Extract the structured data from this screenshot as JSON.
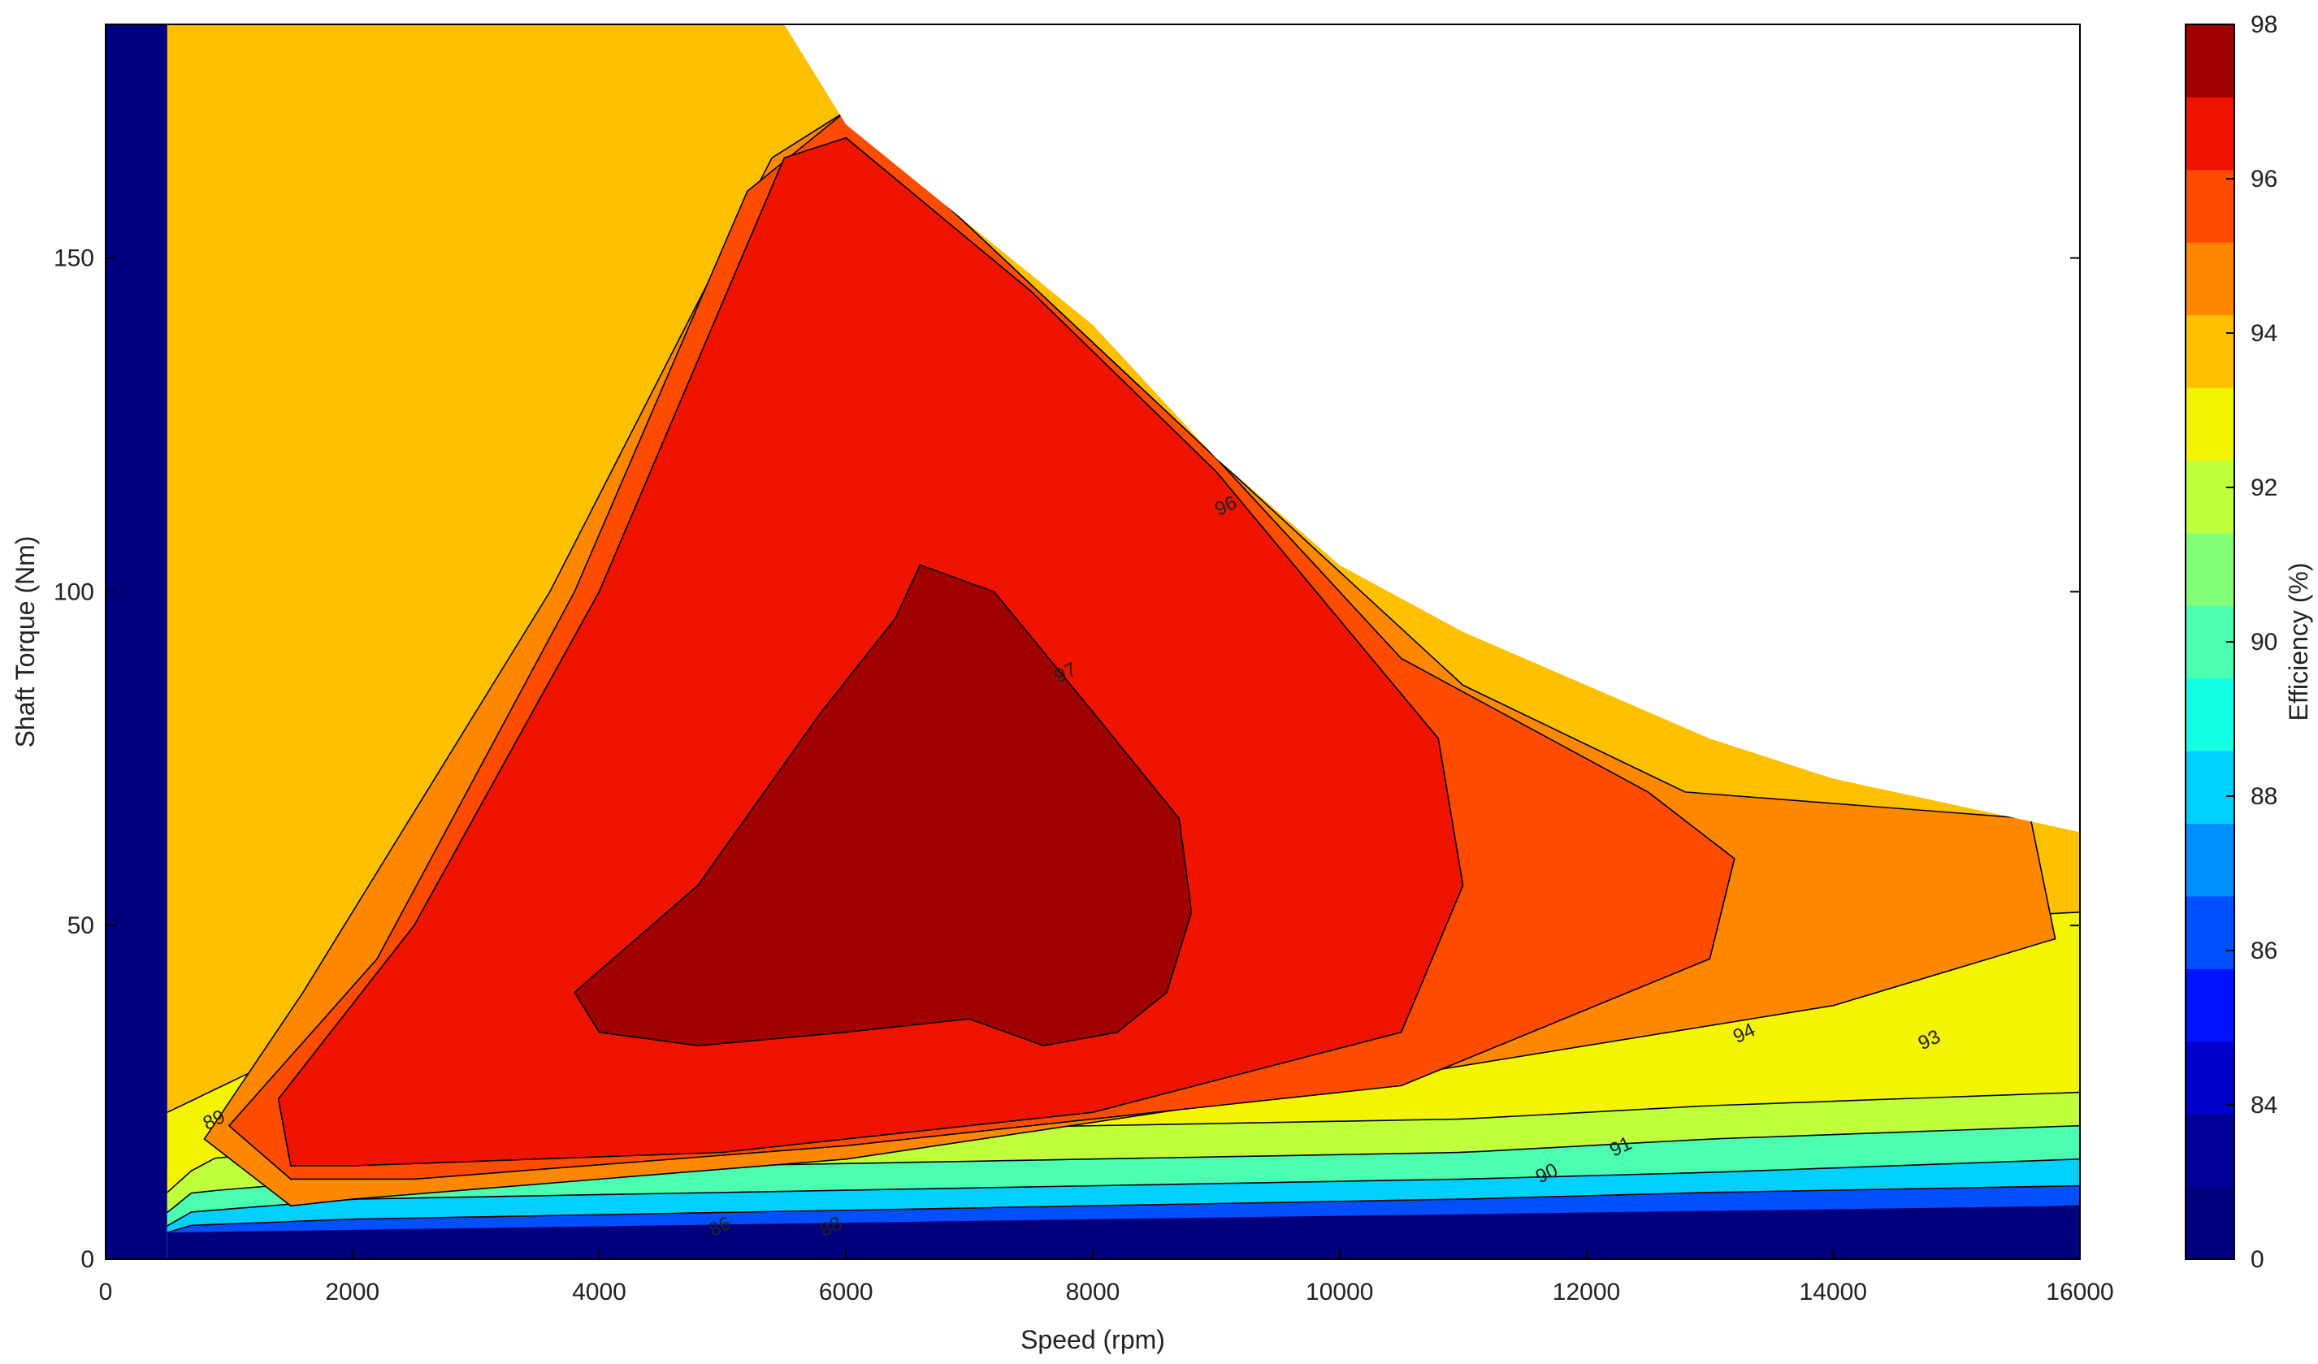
{
  "chart_data": {
    "type": "heatmap",
    "subtype": "filled-contour",
    "title": "",
    "xlabel": "Speed  (rpm)",
    "ylabel": "Shaft Torque  (Nm)",
    "xlim": [
      0,
      16000
    ],
    "ylim": [
      0,
      185
    ],
    "xticks": [
      0,
      2000,
      4000,
      6000,
      8000,
      10000,
      12000,
      14000,
      16000
    ],
    "xtick_labels": [
      "0",
      "2000",
      "4000",
      "6000",
      "8000",
      "10000",
      "12000",
      "14000",
      "16000"
    ],
    "yticks": [
      0,
      50,
      100,
      150
    ],
    "ytick_labels": [
      "0",
      "50",
      "100",
      "150"
    ],
    "grid": false,
    "colorbar": {
      "label": "Efficiency (%)",
      "range": [
        0,
        98
      ],
      "tick_values": [
        0,
        84,
        86,
        88,
        90,
        92,
        94,
        96,
        98
      ],
      "tick_labels": [
        "0",
        "84",
        "86",
        "88",
        "90",
        "92",
        "94",
        "96",
        "98"
      ],
      "colors": [
        "#00007f",
        "#000096",
        "#0000cc",
        "#0014ff",
        "#0050ff",
        "#0090ff",
        "#00d0ff",
        "#14ffe4",
        "#4cffb0",
        "#84ff78",
        "#c0ff3c",
        "#f4f400",
        "#ffc000",
        "#ff8800",
        "#ff4c00",
        "#ee1400",
        "#a00000"
      ]
    },
    "operating_envelope": {
      "x": [
        500,
        5500,
        6000,
        7000,
        8000,
        9000,
        10000,
        11000,
        12000,
        13000,
        14000,
        15000,
        16000
      ],
      "y": [
        185,
        185,
        170,
        155,
        140,
        120,
        104,
        94,
        86,
        78,
        72,
        68,
        64
      ]
    },
    "contour_labels": [
      {
        "text": "96",
        "x": 9100,
        "y": 112
      },
      {
        "text": "97",
        "x": 7800,
        "y": 87
      },
      {
        "text": "94",
        "x": 13300,
        "y": 33
      },
      {
        "text": "93",
        "x": 14800,
        "y": 32
      },
      {
        "text": "91",
        "x": 12300,
        "y": 16
      },
      {
        "text": "90",
        "x": 11700,
        "y": 12
      },
      {
        "text": "89",
        "x": 900,
        "y": 20
      },
      {
        "text": "88",
        "x": 5900,
        "y": 4
      },
      {
        "text": "86",
        "x": 5000,
        "y": 4
      }
    ],
    "contours": [
      {
        "level": 92,
        "x": [
          500,
          1400,
          3000,
          6000,
          9000,
          12000,
          14000,
          16000
        ],
        "y": [
          22,
          30,
          38,
          43,
          46,
          49,
          50,
          52
        ]
      },
      {
        "level": 93,
        "x": [
          500,
          1000,
          3000,
          6000,
          9000,
          12000,
          14000,
          16000
        ],
        "y": [
          14,
          22,
          28,
          32,
          35,
          36,
          35,
          37
        ]
      },
      {
        "level": 91.5,
        "x": [
          500,
          800,
          2000,
          5000,
          8000,
          11000,
          13000,
          16000
        ],
        "y": [
          10,
          15,
          17,
          19,
          20,
          21,
          23,
          25
        ]
      },
      {
        "level": 90.5,
        "x": [
          500,
          700,
          2000,
          5000,
          8000,
          11000,
          13000,
          16000
        ],
        "y": [
          7,
          10,
          12,
          14,
          15,
          16,
          18,
          20
        ]
      },
      {
        "level": 89.5,
        "x": [
          500,
          650,
          2000,
          5000,
          8000,
          11000,
          13000,
          16000
        ],
        "y": [
          5,
          7,
          9,
          10,
          11,
          12,
          13,
          15
        ]
      },
      {
        "level": 88.5,
        "x": [
          500,
          600,
          2000,
          5000,
          8000,
          11000,
          13000,
          16000
        ],
        "y": [
          4,
          5,
          6,
          7,
          8,
          9,
          10,
          11
        ]
      },
      {
        "level": 87,
        "x": [
          500,
          550,
          3000,
          7000,
          10000,
          13000,
          16000
        ],
        "y": [
          3,
          3.5,
          4,
          4.5,
          5,
          6,
          8
        ]
      }
    ]
  }
}
